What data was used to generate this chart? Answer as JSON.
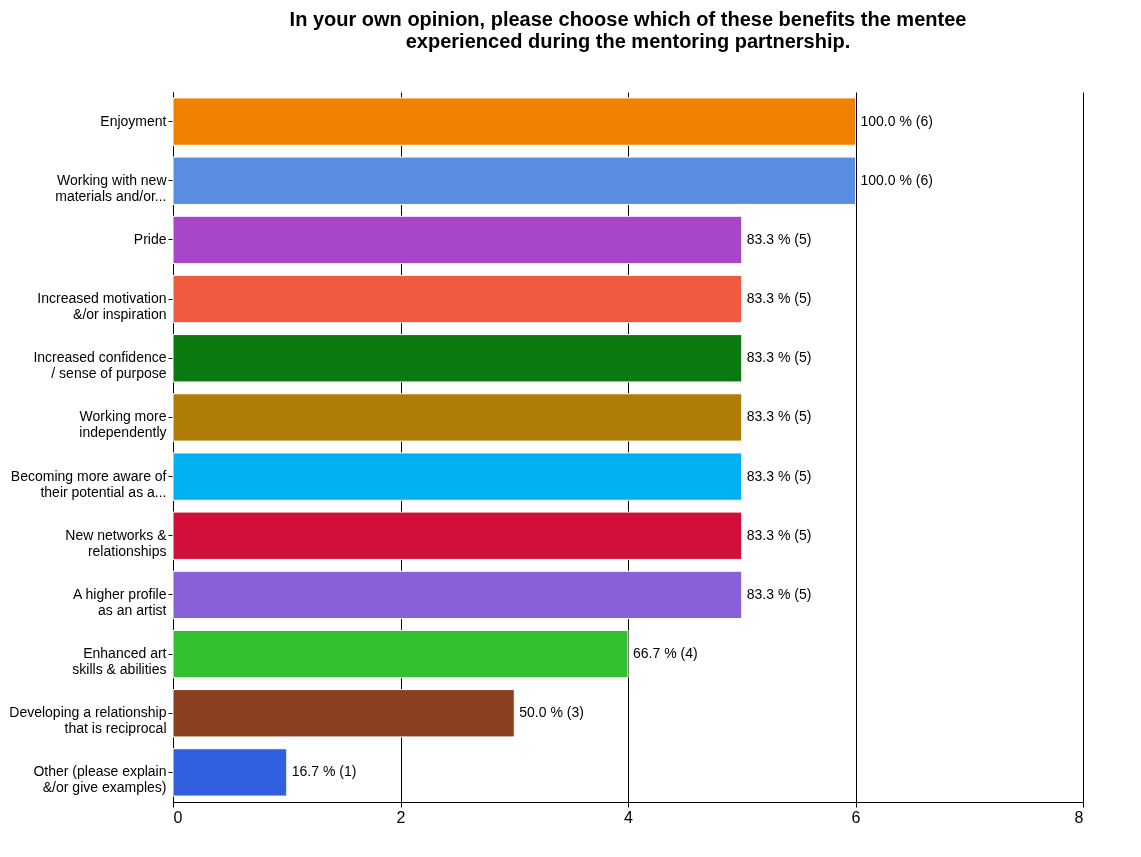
{
  "chart_data": {
    "type": "bar",
    "orientation": "horizontal",
    "title": "In your own opinion, please choose which of these benefits the mentee experienced during the mentoring partnership.",
    "categories": [
      "Enjoyment",
      "Working with new materials and/or...",
      "Pride",
      "Increased motivation &/or inspiration",
      "Increased confidence / sense of purpose",
      "Working more independently",
      "Becoming more aware of their potential as a...",
      "New networks & relationships",
      "A higher profile as an artist",
      "Enhanced art skills & abilities",
      "Developing a relationship that is reciprocal",
      "Other (please explain &/or give examples)"
    ],
    "values": [
      6,
      6,
      5,
      5,
      5,
      5,
      5,
      5,
      5,
      4,
      3,
      1
    ],
    "colors": [
      "#f08000",
      "#5a8de0",
      "#a845c8",
      "#f05a40",
      "#0a7a10",
      "#b07c08",
      "#00b0f0",
      "#d0103a",
      "#8a60d8",
      "#30c030",
      "#8a4020",
      "#3060e0"
    ],
    "value_labels": [
      "100.0 % (6)",
      "100.0 % (6)",
      "83.3 % (5)",
      "83.3 % (5)",
      "83.3 % (5)",
      "83.3 % (5)",
      "83.3 % (5)",
      "83.3 % (5)",
      "83.3 % (5)",
      "66.7 % (4)",
      "50.0 % (3)",
      "16.7 % (1)"
    ],
    "xlim": [
      0,
      8
    ],
    "xticks": [
      0,
      2,
      4,
      6,
      8
    ],
    "grid": "x"
  }
}
